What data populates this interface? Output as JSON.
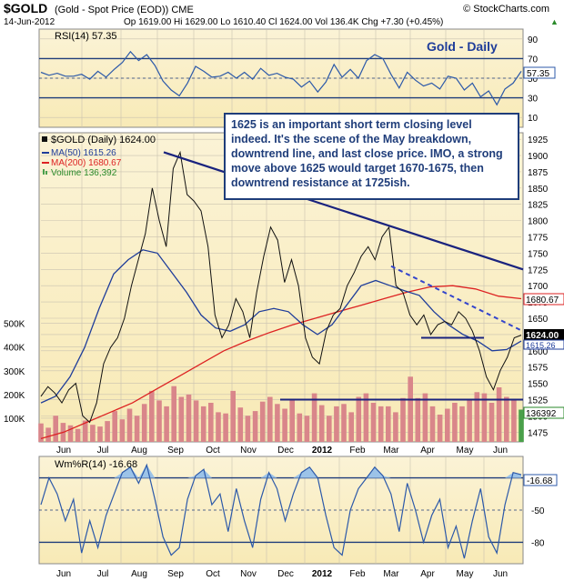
{
  "header": {
    "symbol": "$GOLD",
    "description": "(Gold - Spot Price (EOD)) CME",
    "date": "14-Jun-2012",
    "ohlc": "Op 1619.00  Hi 1629.00  Lo 1610.40  Cl 1624.00  Vol 136.4K  Chg +7.30 (+0.45%)",
    "chg_arrow": "▲",
    "copyright": "© StockCharts.com",
    "panel_title": "Gold - Daily"
  },
  "annotation": "1625 is an important short term closing level indeed. It's the scene of the May breakdown, downtrend line, and last close price.  IMO, a strong move above 1625 would target 1670-1675, then downtrend resistance at 1725ish.",
  "colors": {
    "panel_bg": "#f8eab6",
    "panel_bg_top": "#fbf3d6",
    "price_line": "#111111",
    "ma50": "#1f3d9a",
    "ma200": "#dd2222",
    "volume": "#d9868a",
    "volume_last": "#4aa04a",
    "osc_line": "#2c59a9",
    "osc_fill": "#9cc3e8",
    "trendline": "#1a237e",
    "dashed_trend": "#3344cc",
    "badge_black": "#000000",
    "badge_red": "#dd2222",
    "badge_blue": "#1f3d9a"
  },
  "chart_data": [
    {
      "type": "line",
      "panel": "RSI",
      "label": "RSI(14) 57.35",
      "ylim": [
        0,
        100
      ],
      "y_ticks": [
        10,
        30,
        50,
        70,
        90
      ],
      "reference_lines": [
        30,
        70
      ],
      "last_value": "57.35",
      "x_labels": [
        "Jun",
        "Jul",
        "Aug",
        "Sep",
        "Oct",
        "Nov",
        "Dec",
        "2012",
        "Feb",
        "Mar",
        "Apr",
        "May",
        "Jun"
      ],
      "values": [
        56,
        53,
        55,
        52,
        52,
        54,
        49,
        57,
        51,
        59,
        66,
        77,
        68,
        74,
        63,
        47,
        38,
        32,
        45,
        62,
        57,
        51,
        52,
        56,
        50,
        56,
        49,
        60,
        53,
        55,
        51,
        49,
        41,
        47,
        36,
        46,
        64,
        51,
        59,
        50,
        68,
        74,
        70,
        54,
        40,
        56,
        48,
        42,
        45,
        39,
        52,
        50,
        38,
        45,
        31,
        37,
        23,
        39,
        45,
        57
      ]
    },
    {
      "type": "line",
      "panel": "Price",
      "legend": [
        "$GOLD (Daily) 1624.00",
        "MA(50) 1615.26",
        "MA(200) 1680.67",
        "Volume 136,392"
      ],
      "ylim": [
        1460,
        1935
      ],
      "y_ticks": [
        1475,
        1500,
        1525,
        1550,
        1575,
        1600,
        1625,
        1650,
        1675,
        1700,
        1725,
        1750,
        1775,
        1800,
        1825,
        1850,
        1875,
        1900,
        1925
      ],
      "volume_ticks": [
        "100K",
        "200K",
        "300K",
        "400K",
        "500K"
      ],
      "x_labels": [
        "Jun",
        "Jul",
        "Aug",
        "Sep",
        "Oct",
        "Nov",
        "Dec",
        "2012",
        "Feb",
        "Mar",
        "Apr",
        "May",
        "Jun"
      ],
      "series": [
        {
          "name": "$GOLD (Daily)",
          "values": [
            1530,
            1545,
            1535,
            1520,
            1540,
            1550,
            1500,
            1490,
            1520,
            1580,
            1605,
            1620,
            1650,
            1700,
            1740,
            1780,
            1850,
            1800,
            1760,
            1880,
            1905,
            1840,
            1830,
            1815,
            1760,
            1655,
            1620,
            1640,
            1680,
            1660,
            1620,
            1690,
            1745,
            1790,
            1770,
            1705,
            1740,
            1700,
            1620,
            1590,
            1580,
            1630,
            1655,
            1665,
            1700,
            1720,
            1745,
            1760,
            1740,
            1775,
            1790,
            1700,
            1690,
            1655,
            1640,
            1655,
            1625,
            1640,
            1645,
            1640,
            1660,
            1650,
            1630,
            1600,
            1560,
            1540,
            1570,
            1590,
            1620,
            1624
          ]
        },
        {
          "name": "MA(50)",
          "values": [
            1520,
            1530,
            1560,
            1605,
            1665,
            1718,
            1740,
            1755,
            1750,
            1720,
            1690,
            1655,
            1635,
            1630,
            1640,
            1660,
            1665,
            1660,
            1640,
            1625,
            1640,
            1670,
            1700,
            1708,
            1700,
            1692,
            1685,
            1660,
            1640,
            1625,
            1615,
            1600,
            1602,
            1615
          ]
        },
        {
          "name": "MA(200)",
          "values": [
            1465,
            1475,
            1490,
            1505,
            1520,
            1540,
            1560,
            1580,
            1600,
            1615,
            1628,
            1640,
            1650,
            1660,
            1670,
            1680,
            1690,
            1698,
            1700,
            1695,
            1684,
            1680
          ]
        }
      ],
      "volume": [
        78,
        60,
        110,
        80,
        70,
        55,
        90,
        72,
        65,
        88,
        130,
        95,
        140,
        110,
        160,
        215,
        175,
        150,
        235,
        190,
        200,
        175,
        150,
        165,
        125,
        120,
        215,
        145,
        110,
        130,
        170,
        190,
        160,
        140,
        175,
        120,
        110,
        205,
        155,
        110,
        150,
        160,
        125,
        190,
        205,
        165,
        150,
        150,
        125,
        185,
        275,
        185,
        205,
        150,
        115,
        140,
        165,
        150,
        175,
        210,
        205,
        165,
        230,
        190,
        175,
        136
      ],
      "badges": [
        "1624.00",
        "1680.67",
        "1615.26",
        "136392"
      ],
      "trendline_from_to": [
        [
          1905,
          1725
        ]
      ],
      "dashed_trendline": [
        1730,
        1632
      ],
      "support_line": 1525,
      "breakdown_line": 1620
    },
    {
      "type": "line",
      "panel": "Williams %R",
      "label": "Wm%R(14) -16.68",
      "ylim": [
        -100,
        0
      ],
      "y_ticks": [
        -20,
        -50,
        -80
      ],
      "reference_lines": [
        -20,
        -80
      ],
      "last_value": "-16.68",
      "x_labels": [
        "Jun",
        "Jul",
        "Aug",
        "Sep",
        "Oct",
        "Nov",
        "Dec",
        "2012",
        "Feb",
        "Mar",
        "Apr",
        "May",
        "Jun"
      ],
      "values": [
        -45,
        -20,
        -35,
        -60,
        -40,
        -90,
        -60,
        -85,
        -55,
        -35,
        -15,
        -10,
        -25,
        -8,
        -40,
        -75,
        -92,
        -85,
        -40,
        -18,
        -12,
        -45,
        -35,
        -70,
        -30,
        -60,
        -85,
        -40,
        -15,
        -30,
        -60,
        -35,
        -15,
        -10,
        -20,
        -55,
        -85,
        -92,
        -50,
        -30,
        -20,
        -10,
        -18,
        -35,
        -70,
        -25,
        -50,
        -80,
        -55,
        -40,
        -85,
        -65,
        -95,
        -60,
        -30,
        -75,
        -90,
        -45,
        -15,
        -17
      ]
    }
  ]
}
